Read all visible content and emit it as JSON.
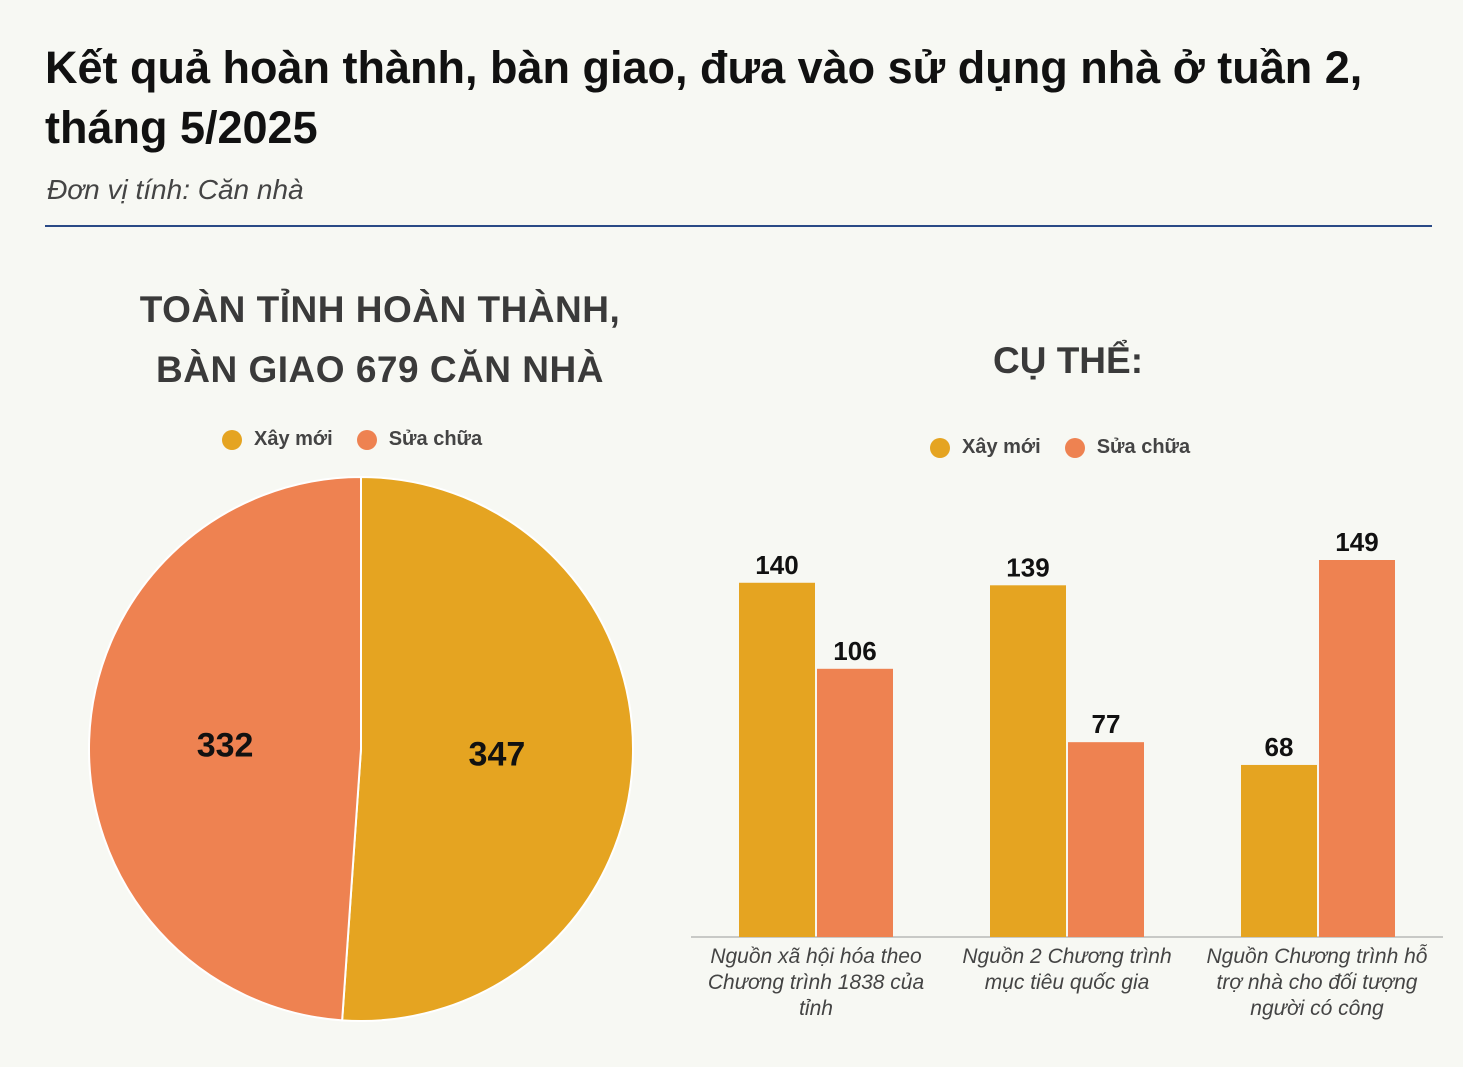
{
  "title": "Kết quả hoàn thành, bàn giao, đưa vào sử dụng nhà ở tuần 2, tháng 5/2025",
  "subtitle": "Đơn vị tính: Căn nhà",
  "legend": {
    "new": "Xây mới",
    "repair": "Sửa chữa"
  },
  "colors": {
    "new": "#e5a421",
    "repair": "#ee8251",
    "rule": "#2a4a86"
  },
  "chart_data": [
    {
      "type": "pie",
      "title_line1": "TOÀN TỈNH HOÀN THÀNH,",
      "title_line2": "BÀN GIAO 679 CĂN NHÀ",
      "slices": [
        {
          "name": "Xây mới",
          "value": 347,
          "label": "347"
        },
        {
          "name": "Sửa chữa",
          "value": 332,
          "label": "332"
        }
      ]
    },
    {
      "type": "bar",
      "title": "CỤ THỂ:",
      "categories": [
        "Nguồn xã hội hóa theo Chương trình 1838 của tỉnh",
        "Nguồn 2 Chương trình mục tiêu quốc gia",
        "Nguồn Chương trình hỗ trợ nhà cho đối tượng người có công"
      ],
      "series": [
        {
          "name": "Xây mới",
          "values": [
            140,
            139,
            68
          ]
        },
        {
          "name": "Sửa chữa",
          "values": [
            106,
            77,
            149
          ]
        }
      ],
      "ylim": [
        0,
        149
      ],
      "grid": false,
      "legend_position": "top"
    }
  ]
}
